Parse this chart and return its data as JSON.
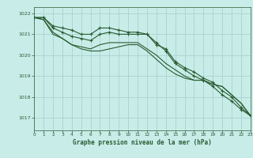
{
  "title": "Graphe pression niveau de la mer (hPa)",
  "background_color": "#c8ece8",
  "grid_color": "#a8d4cc",
  "line_color": "#2a5c32",
  "xlim": [
    0,
    23
  ],
  "ylim": [
    1016.4,
    1022.3
  ],
  "yticks": [
    1017,
    1018,
    1019,
    1020,
    1021,
    1022
  ],
  "xticks": [
    0,
    1,
    2,
    3,
    4,
    5,
    6,
    7,
    8,
    9,
    10,
    11,
    12,
    13,
    14,
    15,
    16,
    17,
    18,
    19,
    20,
    21,
    22,
    23
  ],
  "series": [
    [
      1021.8,
      1021.8,
      1021.4,
      1021.3,
      1021.2,
      1021.0,
      1021.0,
      1021.3,
      1021.3,
      1021.2,
      1021.1,
      1021.1,
      1021.0,
      1020.5,
      1020.3,
      1019.7,
      1019.4,
      1019.2,
      1018.9,
      1018.7,
      1018.3,
      1018.0,
      1017.5,
      1017.1
    ],
    [
      1021.8,
      1021.8,
      1021.3,
      1021.1,
      1020.9,
      1020.8,
      1020.7,
      1021.0,
      1021.1,
      1021.0,
      1021.0,
      1021.0,
      1021.0,
      1020.6,
      1020.2,
      1019.6,
      1019.3,
      1019.0,
      1018.8,
      1018.5,
      1018.1,
      1017.8,
      1017.4,
      1017.1
    ],
    [
      1021.8,
      1021.7,
      1021.1,
      1020.8,
      1020.5,
      1020.4,
      1020.3,
      1020.5,
      1020.6,
      1020.6,
      1020.6,
      1020.6,
      1020.3,
      1020.0,
      1019.6,
      1019.3,
      1019.0,
      1018.8,
      1018.8,
      1018.6,
      1018.5,
      1018.1,
      1017.7,
      1017.1
    ],
    [
      1021.8,
      1021.7,
      1021.0,
      1020.8,
      1020.5,
      1020.3,
      1020.2,
      1020.2,
      1020.3,
      1020.4,
      1020.5,
      1020.5,
      1020.2,
      1019.8,
      1019.4,
      1019.1,
      1018.9,
      1018.8,
      1018.8,
      1018.6,
      1018.5,
      1018.1,
      1017.7,
      1017.1
    ]
  ],
  "marker_indices_s0": [
    0,
    1,
    2,
    3,
    4,
    5,
    6,
    7,
    8,
    9,
    10,
    11,
    12,
    13,
    14,
    15,
    16,
    17,
    18,
    19,
    20,
    21,
    22,
    23
  ],
  "marker_indices_s1": [
    0,
    1,
    2,
    3,
    4,
    5,
    6,
    7,
    8,
    9,
    10,
    11,
    12,
    13,
    14,
    15,
    16,
    17,
    18,
    19,
    20,
    21,
    22,
    23
  ]
}
